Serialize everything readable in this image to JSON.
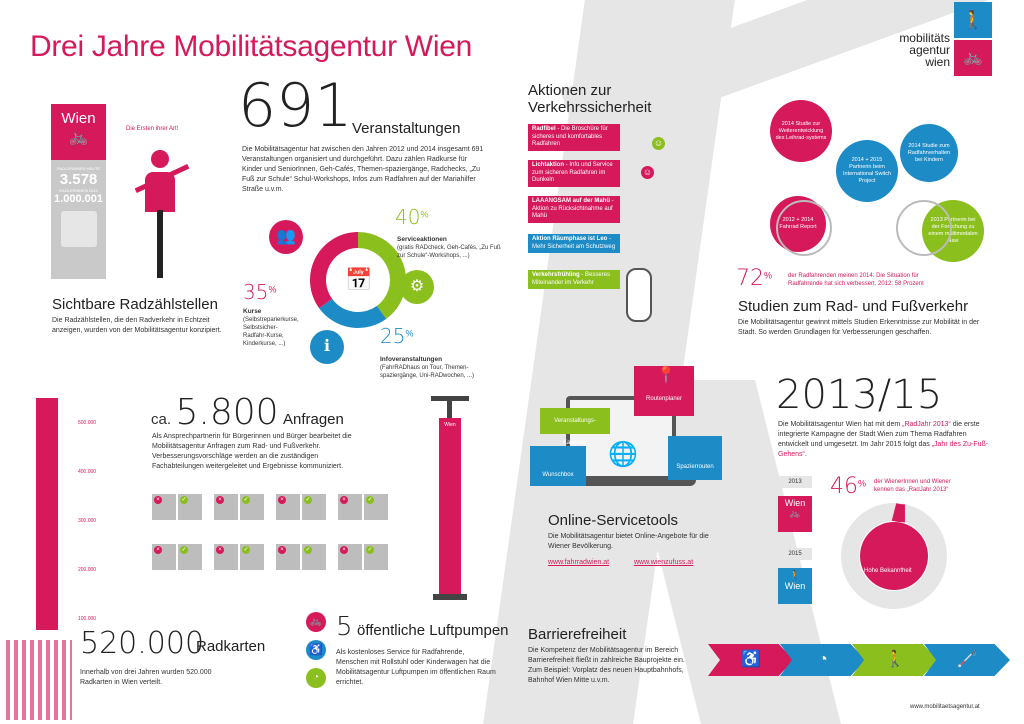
{
  "title": "Drei Jahre Mobilitätsagentur Wien",
  "logo": {
    "line1": "mobilitäts",
    "line2": "agentur",
    "line3": "wien"
  },
  "counter": {
    "wien": "Wien",
    "label_heute": "RADLERINNEN HEUTE",
    "today": "3.578",
    "label_jahr": "RADLERINNEN 2014",
    "year": "1.000.001",
    "tag": "Die Ersten ihrer Art!"
  },
  "radzaehl": {
    "heading": "Sichtbare Radzählstellen",
    "text": "Die Radzählstellen, die den Radverkehr in Echtzeit anzeigen, wurden von der Mobilitätsagentur konzipiert."
  },
  "events": {
    "number": "691",
    "label": "Veranstaltungen",
    "text": "Die Mobilitätsagentur hat zwischen den Jahren 2012 und 2014 insgesamt 691 Veranstaltungen organisiert und durchgeführt. Dazu zählen Radkurse für Kinder und SeniorInnen, Geh-Cafés, Themen-spaziergänge, Radchecks, „Zu Fuß zur Schule“ Schul-Workshops, Infos zum Radfahren auf der Mariahilfer Straße u.v.m.",
    "pct40": "40",
    "pct35": "35",
    "pct25": "25",
    "pct_sign": "%",
    "service_title": "Serviceaktionen",
    "service_text": "(gratis RADcheck, Geh-Cafés, „Zu Fuß zur Schule“-Workshops, ...)",
    "kurse_title": "Kurse",
    "kurse_text": "(Selbstreparierkurse, Selbstsicher-Radfahr-Kurse, Kinderkurse, ...)",
    "info_title": "Infoveranstaltungen",
    "info_text": "(FahrRADhaus on Tour, Themen-spaziergänge, Uni-RADwochen, ...)"
  },
  "donut_data": [
    {
      "name": "Serviceaktionen",
      "value": 40,
      "color": "#8bbf1e"
    },
    {
      "name": "Infoveranstaltungen",
      "value": 25,
      "color": "#1d8bc6"
    },
    {
      "name": "Kurse",
      "value": 35,
      "color": "#d6195b"
    }
  ],
  "sicherheit": {
    "heading_l1": "Aktionen zur",
    "heading_l2": "Verkehrssicherheit",
    "items": [
      {
        "bold": "Radfibel",
        "text": " - Die Broschüre für sicheres und komfortables Radfahren"
      },
      {
        "bold": "Lichtaktion",
        "text": " - Info und Service zum sicheren Radfahren im Dunkeln"
      },
      {
        "bold": "LAAANGSAM auf der Mahü",
        "text": " - Aktion zu Rücksichtnahme auf Mahü"
      },
      {
        "bold": "Aktion Räumphase ist Leo",
        "text": " - Mehr Sicherheit am Schutzweg"
      },
      {
        "bold": "Verkehrsfrühling",
        "text": " - Besseres Miteinander im Verkehr"
      }
    ]
  },
  "studien": {
    "c1": "2014 Studie zur Weiterentwicklung des Leihrad-systems",
    "c2": "2014 Studie zum Radfahrverhalten bei Kindern",
    "c3": "2014 + 2015 Partnerin beim International Switch Project",
    "c4": "2012 + 2014 Fahrrad Report",
    "c5": "2013 Partnerin bei der Forschung zu einem multimodalen Navi",
    "pct": "72",
    "pct_sign": "%",
    "pct_text": "der Radfahrenden meinen 2014: Die Situation für Radfahrende hat sich verbessert. 2012: 58 Prozent",
    "heading": "Studien zum Rad- und Fußverkehr",
    "text": "Die Mobilitätsagentur gewinnt mittels Studien Erkenntnisse zur Mobilität in der Stadt. So werden Grundlagen für Verbesserungen geschaffen."
  },
  "bar": {
    "ticks": [
      "500.000",
      "400.000",
      "300.000",
      "200.000",
      "100.000"
    ]
  },
  "radkarten": {
    "number": "520.000",
    "label": "Radkarten",
    "text": "Innerhalb von drei Jahren wurden 520.000 Radkarten in Wien verteilt."
  },
  "anfragen": {
    "ca": "ca.",
    "number": "5.800",
    "label": "Anfragen",
    "text": "Als Ansprechpartnerin für Bürgerinnen und Bürger bearbeitet die Mobilitätsagentur Anfragen zum Rad- und Fußverkehr. Verbesserungsvorschläge werden an die zuständigen Fachabteilungen weitergeleitet und Ergebnisse kommuniziert."
  },
  "pumpe": {
    "number": "5",
    "label": "öffentliche Luftpumpen",
    "wien": "Wien",
    "text": "Als kostenloses Service für Radfahrende, Menschen mit Rollstuhl oder Kinderwagen hat die Mobilitätsagentur Luftpumpen im öffentlichen Raum errichtet."
  },
  "online": {
    "kalender": "Veranstaltungs-Kalender",
    "routenplaner": "Routenplaner",
    "wunschbox": "Wunschbox",
    "spazier": "Spazierrouten",
    "heading": "Online-Servicetools",
    "text": "Die Mobilitätsagentur bietet Online-Angebote für die Wiener Bevölkerung.",
    "link1": "www.fahrradwien.at",
    "link2": "www.wienzufuss.at"
  },
  "jahre": {
    "number": "2013/15",
    "t1": "Die Mobilitätsagentur Wien hat mit dem ",
    "q1": "„RadJahr 2013“",
    "t2": " die erste integrierte Kampagne der Stadt Wien zum Thema Radfahren entwickelt und umgesetzt. Im Jahr 2015 folgt das ",
    "q2": "„Jahr des Zu-Fuß-Gehens“",
    "t3": ".",
    "y2013": "2013",
    "y2015": "2015",
    "wien": "Wien",
    "pct": "46",
    "pct_sign": "%",
    "pct_text": "der WienerInnen und Wiener kennen das „RadJahr 2013“",
    "donut_label": "Hohe Bekanntheit",
    "pct_value": 46
  },
  "barriere": {
    "heading": "Barrierefreiheit",
    "text": "Die Kompetenz der Mobilitätsagentur im Bereich Barrierefreiheit fließt in zahlreiche Bauprojekte ein. Zum Beispiel: Vorplatz des neuen Hauptbahnhofs, Bahnhof Wien Mitte u.v.m."
  },
  "footer": "www.mobilitaetsagentur.at",
  "colors": {
    "magenta": "#d6195b",
    "green": "#8bbf1e",
    "blue": "#1d8bc6",
    "gray": "#e6e6e6"
  }
}
